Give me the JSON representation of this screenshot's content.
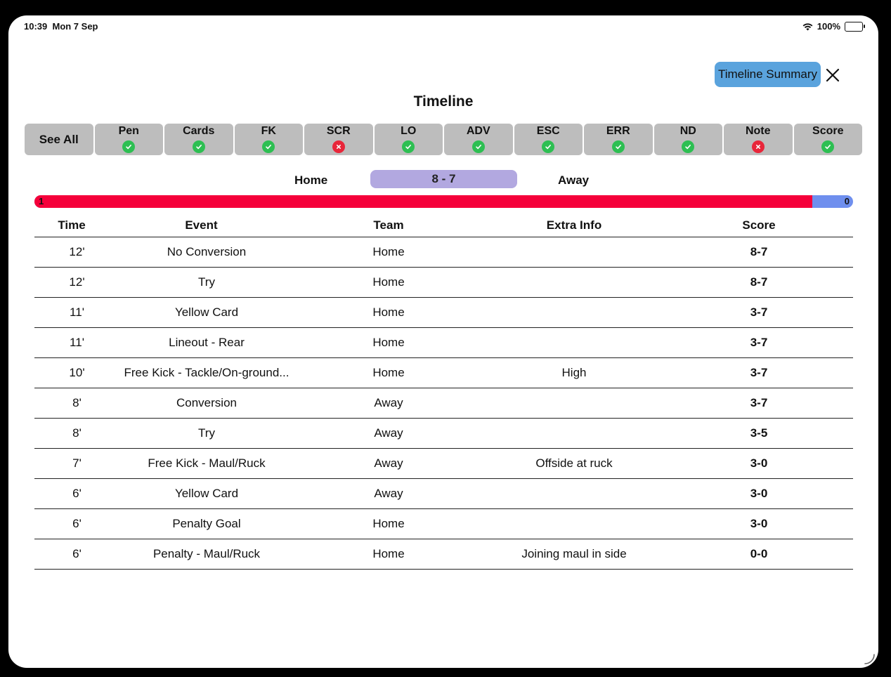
{
  "status_bar": {
    "time": "10:39",
    "date": "Mon 7 Sep",
    "battery": "100%",
    "battery_level": 1.0,
    "icons": [
      "wifi-icon",
      "battery-icon"
    ]
  },
  "header": {
    "summary_button": "Timeline Summary",
    "close_icon": "close-icon",
    "title": "Timeline"
  },
  "filters": [
    {
      "label": "See All"
    },
    {
      "label": "Pen",
      "enabled": true
    },
    {
      "label": "Cards",
      "enabled": true
    },
    {
      "label": "FK",
      "enabled": true
    },
    {
      "label": "SCR",
      "enabled": false
    },
    {
      "label": "LO",
      "enabled": true
    },
    {
      "label": "ADV",
      "enabled": true
    },
    {
      "label": "ESC",
      "enabled": true
    },
    {
      "label": "ERR",
      "enabled": true
    },
    {
      "label": "ND",
      "enabled": true
    },
    {
      "label": "Note",
      "enabled": false
    },
    {
      "label": "Score",
      "enabled": true
    }
  ],
  "scoreboard": {
    "home": "Home",
    "away": "Away",
    "score": "8 - 7"
  },
  "momentum": {
    "home_value": "1",
    "away_value": "0",
    "home_fraction": 0.95
  },
  "table": {
    "headers": {
      "time": "Time",
      "event": "Event",
      "team": "Team",
      "extra": "Extra Info",
      "score": "Score"
    },
    "rows": [
      {
        "time": "12'",
        "event": "No Conversion",
        "team": "Home",
        "extra": "",
        "score": "8-7"
      },
      {
        "time": "12'",
        "event": "Try",
        "team": "Home",
        "extra": "",
        "score": "8-7"
      },
      {
        "time": "11'",
        "event": "Yellow Card",
        "team": "Home",
        "extra": "",
        "score": "3-7"
      },
      {
        "time": "11'",
        "event": "Lineout - Rear",
        "team": "Home",
        "extra": "",
        "score": "3-7"
      },
      {
        "time": "10'",
        "event": "Free Kick - Tackle/On-ground...",
        "team": "Home",
        "extra": "High",
        "score": "3-7"
      },
      {
        "time": "8'",
        "event": "Conversion",
        "team": "Away",
        "extra": "",
        "score": "3-7"
      },
      {
        "time": "8'",
        "event": "Try",
        "team": "Away",
        "extra": "",
        "score": "3-5"
      },
      {
        "time": "7'",
        "event": "Free Kick - Maul/Ruck",
        "team": "Away",
        "extra": "Offside at ruck",
        "score": "3-0"
      },
      {
        "time": "6'",
        "event": "Yellow Card",
        "team": "Away",
        "extra": "",
        "score": "3-0"
      },
      {
        "time": "6'",
        "event": "Penalty Goal",
        "team": "Home",
        "extra": "",
        "score": "3-0"
      },
      {
        "time": "6'",
        "event": "Penalty - Maul/Ruck",
        "team": "Home",
        "extra": "Joining maul in side",
        "score": "0-0"
      }
    ]
  },
  "colors": {
    "summary_button": "#5aa3dd",
    "score_pill": "#b2a8e0",
    "home_bar": "#f5003a",
    "away_bar": "#6f8fee",
    "check_on": "#2dbf52",
    "check_off": "#e8263a"
  }
}
